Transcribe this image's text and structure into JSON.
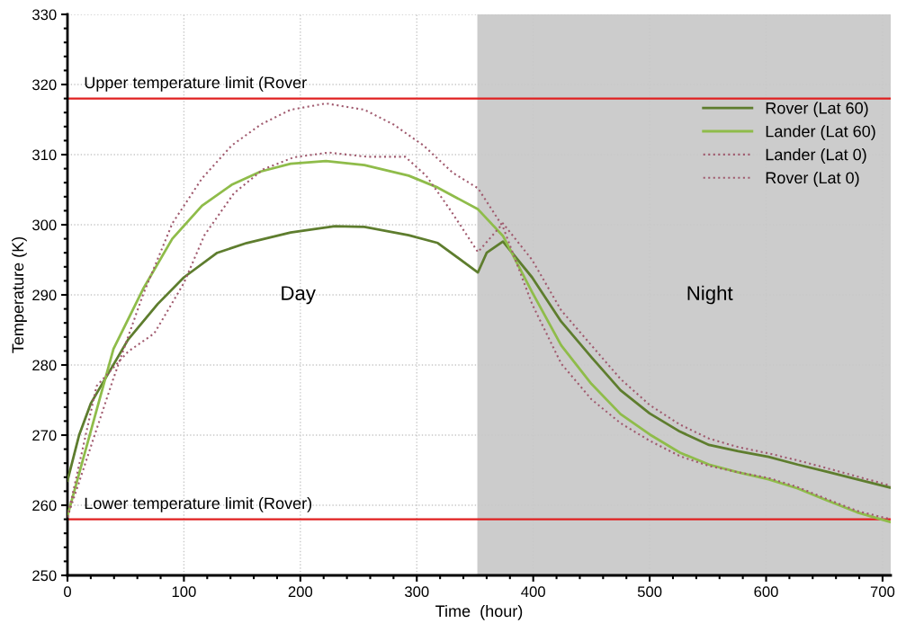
{
  "chart_data": {
    "type": "line",
    "xlabel": "Time  (hour)",
    "ylabel": "Temperature (K)",
    "xlim": [
      0,
      707
    ],
    "ylim": [
      250,
      330
    ],
    "xticks": [
      0,
      100,
      200,
      300,
      400,
      500,
      600,
      700
    ],
    "yticks": [
      250,
      260,
      270,
      280,
      290,
      300,
      310,
      320,
      330
    ],
    "grid": true,
    "legend": "top right",
    "series": [
      {
        "name": "Rover (Lat 60)",
        "color": "#5e7d2e",
        "line_style": "solid",
        "x": [
          0,
          10,
          20,
          26.6,
          52,
          77.5,
          100,
          128.6,
          154,
          191.6,
          229.6,
          255,
          293,
          318,
          352.5,
          360,
          374,
          399,
          424,
          450,
          475,
          500,
          526,
          551,
          576,
          602,
          627,
          652,
          678,
          707
        ],
        "values": [
          263.5,
          270,
          274.5,
          276.4,
          283.6,
          288.7,
          292.5,
          296,
          297.4,
          298.9,
          299.8,
          299.7,
          298.5,
          297.4,
          293.2,
          296,
          297.6,
          292.5,
          286.2,
          281.1,
          276.4,
          273.1,
          270.5,
          268.6,
          267.7,
          266.9,
          265.8,
          264.8,
          263.7,
          262.5
        ]
      },
      {
        "name": "Lander (Lat 60)",
        "color": "#8fbc4a",
        "line_style": "solid",
        "x": [
          0,
          39.5,
          64.8,
          90,
          115.5,
          141,
          166,
          191.6,
          222,
          255,
          293,
          318,
          352.6,
          374,
          399,
          424,
          450,
          475,
          500,
          526,
          551,
          576,
          602,
          627,
          652,
          678,
          707
        ],
        "values": [
          258.5,
          282.3,
          290.8,
          298,
          302.7,
          305.7,
          307.6,
          308.7,
          309.1,
          308.5,
          307,
          305.3,
          302.2,
          298.4,
          290.4,
          282.8,
          277.3,
          273,
          270.1,
          267.5,
          265.8,
          264.7,
          263.7,
          262.4,
          260.7,
          259,
          257.6
        ]
      },
      {
        "name": "Lander (Lat 0)",
        "color": "#a05a6e",
        "line_style": "dotted",
        "x": [
          0,
          39.5,
          64.8,
          90.1,
          115.5,
          141,
          166,
          191.6,
          222,
          255,
          280,
          305.8,
          331,
          352.6,
          374,
          399,
          424,
          450,
          475,
          500,
          526,
          551,
          576,
          602,
          627,
          652,
          678,
          707
        ],
        "values": [
          258.3,
          278.1,
          290,
          300.2,
          306.6,
          311.3,
          314.3,
          316.4,
          317.3,
          316.4,
          314.3,
          311.3,
          307.4,
          305.2,
          299.7,
          288.7,
          280.2,
          275.1,
          271.7,
          269.2,
          267,
          265.6,
          264.7,
          263.9,
          262.6,
          260.9,
          259.2,
          258
        ]
      },
      {
        "name": "Rover (Lat 0)",
        "color": "#a05a6e",
        "line_style": "dotted",
        "x": [
          0,
          25,
          52,
          74.5,
          82,
          100,
          117.6,
          143,
          168,
          194,
          224,
          257,
          290,
          308,
          328,
          352.5,
          374,
          399,
          424,
          450,
          475,
          500,
          526,
          551,
          576,
          602,
          627,
          652,
          678,
          707
        ],
        "values": [
          258.3,
          277,
          281.9,
          284.5,
          286.6,
          291.7,
          298.5,
          304.5,
          307.9,
          309.6,
          310.3,
          309.7,
          309.7,
          307,
          302.3,
          296.1,
          300.2,
          295,
          287.8,
          282.8,
          278,
          274.3,
          271.5,
          269.5,
          268.3,
          267.4,
          266.4,
          265.3,
          264.1,
          262.8
        ]
      }
    ],
    "ref_lines": [
      {
        "axis": "y",
        "value": 318,
        "label": "Upper temperature limit (Rover",
        "color": "#e02020"
      },
      {
        "axis": "y",
        "value": 258,
        "label": "Lower temperature limit (Rover)",
        "color": "#e02020"
      }
    ],
    "bands": [
      {
        "axis": "x",
        "from": 352,
        "to": 707,
        "color": "#cccccc"
      }
    ],
    "annotations": [
      "Day",
      "Night"
    ]
  }
}
